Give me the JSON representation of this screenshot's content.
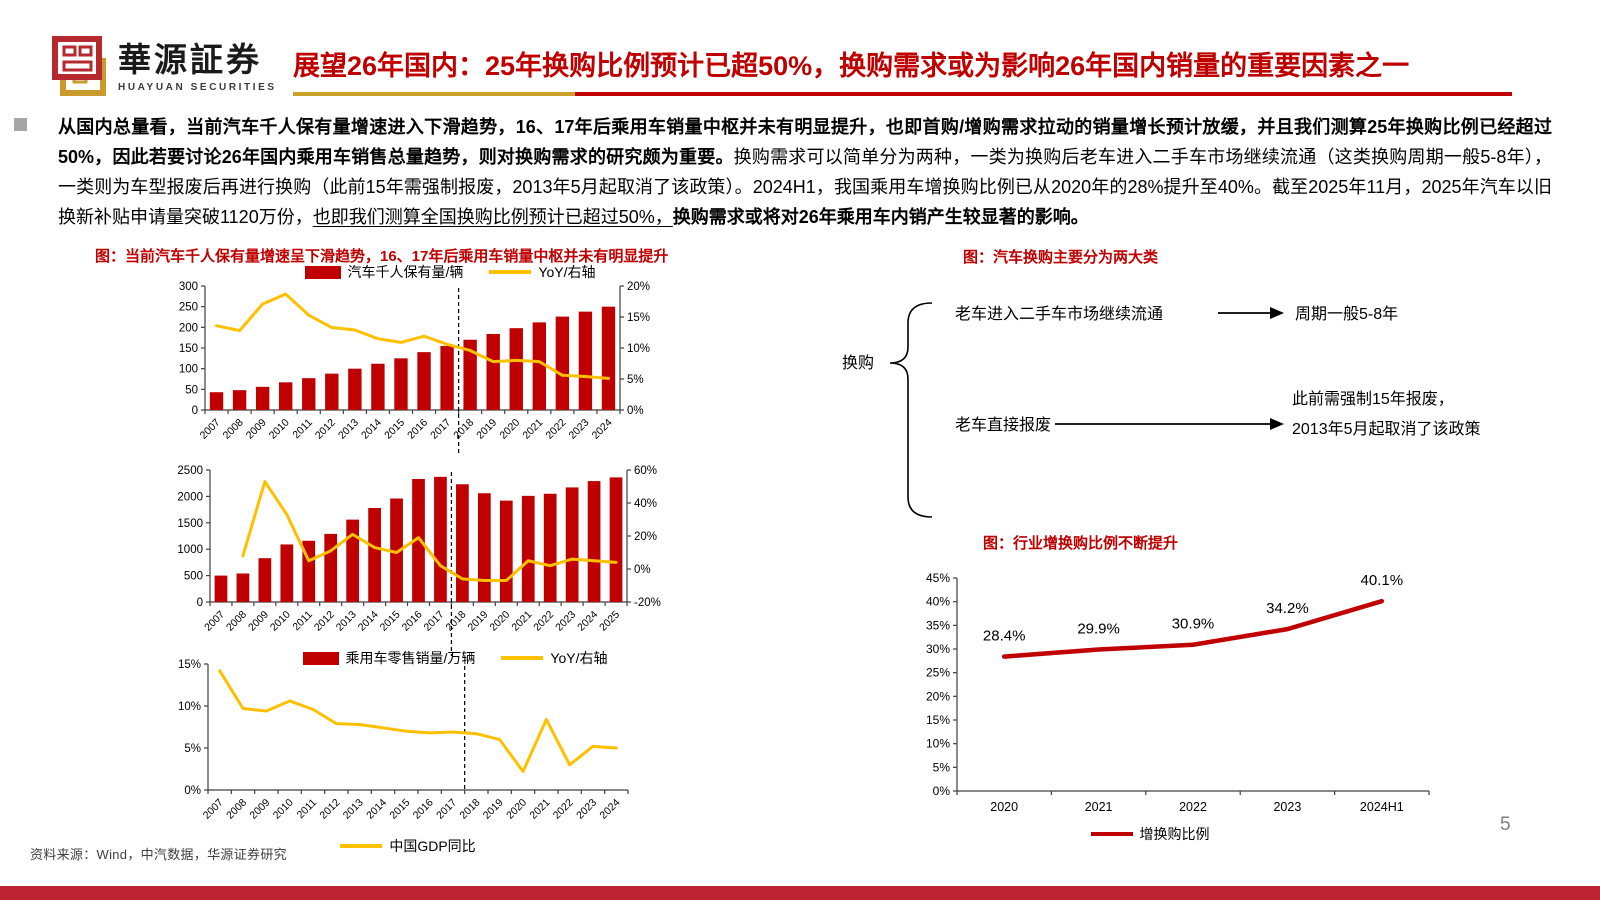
{
  "header": {
    "logo_cn": "華源証券",
    "logo_en": "HUAYUAN SECURITIES",
    "title": "展望26年国内：25年换购比例预计已超50%，换购需求或为影响26年国内销量的重要因素之一",
    "accent_red": "#C00000",
    "accent_gold": "#C9A227"
  },
  "body": {
    "segments": [
      {
        "text": "从国内总量看，当前汽车千人保有量增速进入下滑趋势，16、17年后乘用车销量中枢并未有明显提升，也即首购/增购需求拉动的销量增长预计放缓，并且我们测算25年换购比例已经超过50%，因此若要讨论26年国内乘用车销售总量趋势，则对换购需求的研究颇为重要。",
        "bold": true,
        "underline": false
      },
      {
        "text": "换购需求可以简单分为两种，一类为换购后老车进入二手车市场继续流通（这类换购周期一般5-8年），一类则为车型报废后再进行换购（此前15年需强制报废，2013年5月起取消了该政策）。2024H1，我国乘用车增换购比例已从2020年的28%提升至40%。截至2025年11月，2025年汽车以旧换新补贴申请量突破1120万份，",
        "bold": false,
        "underline": false
      },
      {
        "text": "也即我们测算全国换购比例预计已超过50%，",
        "bold": false,
        "underline": true
      },
      {
        "text": "换购需求或将对26年乘用车内销产生较显著的影响。",
        "bold": true,
        "underline": false
      }
    ]
  },
  "sections": {
    "left_chart_title": "图：当前汽车千人保有量增速呈下滑趋势，16、17年后乘用车销量中枢并未有明显提升",
    "diagram_title": "图：汽车换购主要分为两大类",
    "right_chart_title": "图：行业增换购比例不断提升"
  },
  "diagram": {
    "root": "换购",
    "branch1": {
      "label": "老车进入二手车市场继续流通",
      "result": "周期一般5-8年"
    },
    "branch2": {
      "label": "老车直接报废",
      "result_line1": "此前需强制15年报废，",
      "result_line2": "2013年5月起取消了该政策"
    }
  },
  "footer": {
    "source": "资料来源：Wind，中汽数据，华源证券研究",
    "page_number": "5"
  },
  "chart_data": [
    {
      "id": "vehicle-per-1000",
      "type": "bar",
      "title": "图：当前汽车千人保有量增速呈下滑趋势，16、17年后乘用车销量中枢并未有明显提升",
      "categories": [
        "2007",
        "2008",
        "2009",
        "2010",
        "2011",
        "2012",
        "2013",
        "2014",
        "2015",
        "2016",
        "2017",
        "2018",
        "2019",
        "2020",
        "2021",
        "2022",
        "2023",
        "2024"
      ],
      "series": [
        {
          "name": "汽车千人保有量/辆",
          "type": "bar",
          "axis": "left",
          "color": "#C00000",
          "values": [
            43,
            48,
            56,
            67,
            77,
            88,
            100,
            112,
            125,
            140,
            155,
            170,
            184,
            198,
            212,
            226,
            238,
            250
          ]
        },
        {
          "name": "YoY/右轴",
          "type": "line",
          "axis": "right",
          "color": "#FFC000",
          "values": [
            13.6,
            12.8,
            17.1,
            18.7,
            15.3,
            13.3,
            12.9,
            11.5,
            10.9,
            11.9,
            10.6,
            9.6,
            7.8,
            8.0,
            7.8,
            5.6,
            5.4,
            5.1
          ]
        }
      ],
      "left_axis": {
        "min": 0,
        "max": 300,
        "step": 50,
        "format": "plain"
      },
      "right_axis": {
        "min": 0,
        "max": 20,
        "step": 5,
        "format": "percent"
      },
      "dash_boundary": 11,
      "legend_position": "top"
    },
    {
      "id": "pv-retail",
      "type": "bar",
      "categories": [
        "2007",
        "2008",
        "2009",
        "2010",
        "2011",
        "2012",
        "2013",
        "2014",
        "2015",
        "2016",
        "2017",
        "2018",
        "2019",
        "2020",
        "2021",
        "2022",
        "2023",
        "2024",
        "2025"
      ],
      "series": [
        {
          "name": "乘用车零售销量/万辆",
          "type": "bar",
          "axis": "left",
          "color": "#C00000",
          "values": [
            500,
            540,
            830,
            1090,
            1160,
            1290,
            1560,
            1780,
            1960,
            2330,
            2370,
            2230,
            2060,
            1920,
            2010,
            2050,
            2170,
            2290,
            2360
          ]
        },
        {
          "name": "YoY/右轴",
          "type": "line",
          "axis": "right",
          "color": "#FFC000",
          "values": [
            null,
            8,
            53,
            33,
            5,
            11,
            21,
            13,
            10,
            19,
            2,
            -6,
            -7,
            -7,
            5,
            2,
            6,
            5,
            4
          ]
        }
      ],
      "left_axis": {
        "min": 0,
        "max": 2500,
        "step": 500,
        "format": "plain"
      },
      "right_axis": {
        "min": -20,
        "max": 60,
        "step": 20,
        "format": "percent"
      },
      "dash_boundary": 11,
      "legend_position": "bottom"
    },
    {
      "id": "china-gdp",
      "type": "line",
      "categories": [
        "2007",
        "2008",
        "2009",
        "2010",
        "2011",
        "2012",
        "2013",
        "2014",
        "2015",
        "2016",
        "2017",
        "2018",
        "2019",
        "2020",
        "2021",
        "2022",
        "2023",
        "2024"
      ],
      "series": [
        {
          "name": "中国GDP同比",
          "type": "line",
          "axis": "left",
          "color": "#FFC000",
          "values": [
            14.2,
            9.7,
            9.4,
            10.6,
            9.6,
            7.9,
            7.8,
            7.4,
            7.0,
            6.8,
            6.9,
            6.7,
            6.0,
            2.2,
            8.4,
            3.0,
            5.2,
            5.0
          ]
        }
      ],
      "left_axis": {
        "min": 0,
        "max": 15,
        "step": 5,
        "format": "percent"
      },
      "dash_boundary": 11,
      "legend_position": "bottom"
    },
    {
      "id": "trade-in-ratio",
      "type": "line",
      "title": "图：行业增换购比例不断提升",
      "categories": [
        "2020",
        "2021",
        "2022",
        "2023",
        "2024H1"
      ],
      "series": [
        {
          "name": "增换购比例",
          "type": "line",
          "axis": "left",
          "color": "#C00000",
          "width": 4.5,
          "values": [
            28.4,
            29.9,
            30.9,
            34.2,
            40.1
          ],
          "point_labels": [
            "28.4%",
            "29.9%",
            "30.9%",
            "34.2%",
            "40.1%"
          ]
        }
      ],
      "left_axis": {
        "min": 0,
        "max": 45,
        "step": 5,
        "format": "percent"
      },
      "legend_position": "bottom"
    }
  ]
}
